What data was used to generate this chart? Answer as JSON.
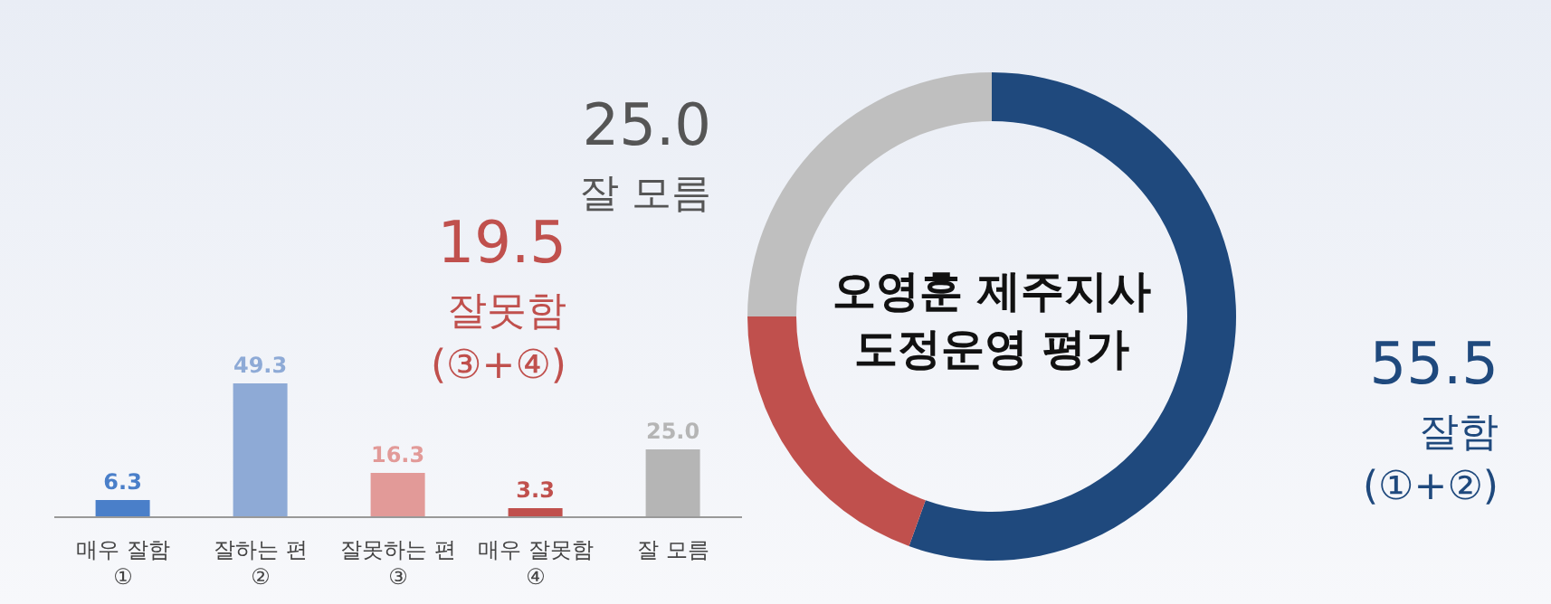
{
  "chart_data": [
    {
      "type": "bar",
      "categories": [
        "매우 잘함\n①",
        "잘하는 편\n②",
        "잘못하는 편\n③",
        "매우 잘못함\n④",
        "잘 모름"
      ],
      "values": [
        6.3,
        49.3,
        16.3,
        3.3,
        25.0
      ],
      "value_labels": [
        "6.3",
        "49.3",
        "16.3",
        "3.3",
        "25.0"
      ],
      "colors": [
        "#4a7fc9",
        "#8eaad6",
        "#e29a98",
        "#c0504d",
        "#b5b5b5"
      ]
    },
    {
      "type": "donut",
      "title": "오영훈 제주지사\n도정운영 평가",
      "categories": [
        "잘함\n(①+②)",
        "잘못함\n(③+④)",
        "잘 모름"
      ],
      "values": [
        55.5,
        19.5,
        25.0
      ],
      "value_labels": [
        "55.5",
        "19.5",
        "25.0"
      ],
      "colors": [
        "#1f497d",
        "#c0504d",
        "#bfbfbf"
      ]
    }
  ]
}
